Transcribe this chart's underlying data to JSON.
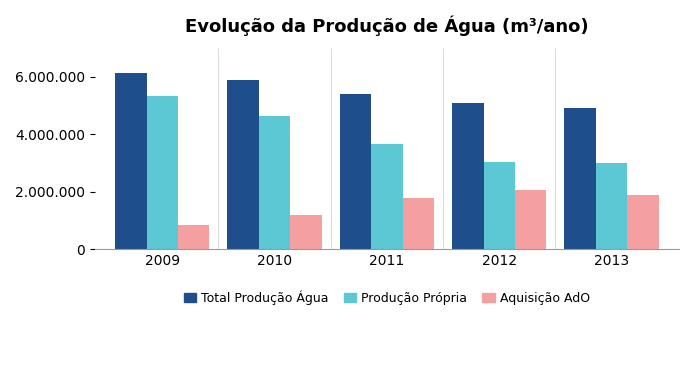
{
  "title": "Evolução da Produção de Água (m³/ano)",
  "years": [
    "2009",
    "2010",
    "2011",
    "2012",
    "2013"
  ],
  "series": {
    "Total Produção Água": [
      6150000,
      5900000,
      5400000,
      5100000,
      4900000
    ],
    "Produção Própria": [
      5350000,
      4650000,
      3650000,
      3050000,
      3000000
    ],
    "Aquisição AdO": [
      850000,
      1200000,
      1800000,
      2050000,
      1900000
    ]
  },
  "colors": {
    "Total Produção Água": "#1F4E8C",
    "Produção Própria": "#5BC8D4",
    "Aquisição AdO": "#F4A0A0"
  },
  "ylim": [
    0,
    7000000
  ],
  "yticks": [
    0,
    2000000,
    4000000,
    6000000
  ],
  "bar_width": 0.28,
  "background_color": "#FFFFFF",
  "plot_bg_color": "#FFFFFF",
  "title_fontsize": 13,
  "tick_fontsize": 10,
  "legend_fontsize": 9
}
